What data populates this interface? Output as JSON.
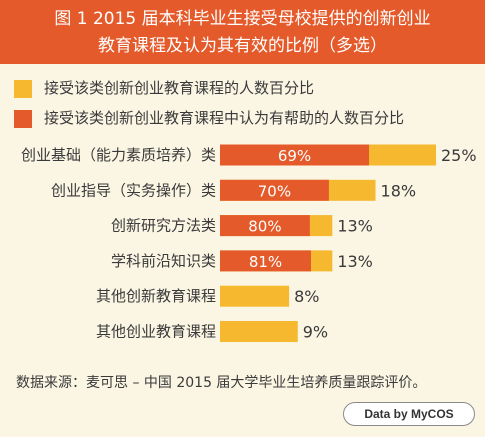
{
  "title": {
    "line1": "图 1 2015 届本科毕业生接受母校提供的创新创业",
    "line2": "教育课程及认为其有效的比例（多选）"
  },
  "legend": {
    "share": "接受该类创新创业教育课程的人数百分比",
    "helpful": "接受该类创新创业教育课程中认为有帮助的人数百分比"
  },
  "colors": {
    "title_bg": "#e45a2a",
    "share_bar": "#f5b82e",
    "helpful_bar": "#e45a2a",
    "background": "#fbf6e4"
  },
  "chart_data": {
    "type": "bar",
    "orientation": "horizontal",
    "categories": [
      "创业基础（能力素质培养）类",
      "创业指导（实务操作）类",
      "创新研究方法类",
      "学科前沿知识类",
      "其他创新教育课程",
      "其他创业教育课程"
    ],
    "series": [
      {
        "name": "接受该类创新创业教育课程的人数百分比",
        "values": [
          25,
          18,
          13,
          13,
          8,
          9
        ],
        "labels": [
          "25%",
          "18%",
          "13%",
          "13%",
          "8%",
          "9%"
        ]
      },
      {
        "name": "接受该类创新创业教育课程中认为有帮助的人数百分比",
        "values": [
          69,
          70,
          80,
          81,
          null,
          null
        ],
        "labels": [
          "69%",
          "70%",
          "80%",
          "81%",
          "",
          ""
        ]
      }
    ],
    "helpful_is_fraction_of_share": true,
    "xlim": [
      0,
      25
    ],
    "grid": false,
    "legend_position": "top-left"
  },
  "source": "数据来源：麦可思 – 中国 2015 届大学毕业生培养质量跟踪评价。",
  "badge": "Data by MyCOS"
}
